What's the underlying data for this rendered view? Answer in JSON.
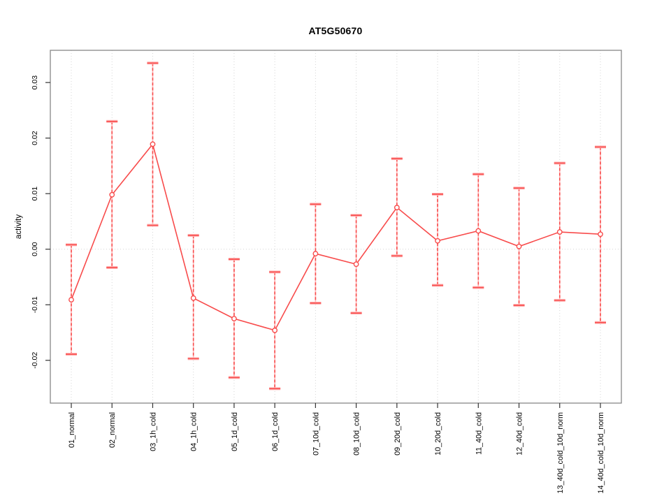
{
  "window": {
    "background": "#ffffff"
  },
  "chart_data": {
    "type": "line",
    "title": "AT5G50670",
    "xlabel": "",
    "ylabel": "activity",
    "categories": [
      "01_normal",
      "02_normal",
      "03_1h_cold",
      "04_1h_cold",
      "05_1d_cold",
      "06_1d_cold",
      "07_10d_cold",
      "08_10d_cold",
      "09_20d_cold",
      "10_20d_cold",
      "11_40d_cold",
      "12_40d_cold",
      "13_40d_cold_10d_norm",
      "14_40d_cold_10d_norm"
    ],
    "series": [
      {
        "name": "activity",
        "means": [
          -0.0091,
          0.0098,
          0.0189,
          -0.0088,
          -0.0125,
          -0.0146,
          -0.0008,
          -0.0027,
          0.0075,
          0.0015,
          0.0033,
          0.0005,
          0.0031,
          0.0027
        ],
        "upper": [
          0.0008,
          0.023,
          0.0335,
          0.0025,
          -0.0018,
          -0.0041,
          0.0081,
          0.0061,
          0.0163,
          0.0099,
          0.0135,
          0.011,
          0.0155,
          0.0184
        ],
        "lower": [
          -0.0189,
          -0.0033,
          0.0043,
          -0.0197,
          -0.0231,
          -0.0251,
          -0.0097,
          -0.0115,
          -0.0012,
          -0.0065,
          -0.0069,
          -0.0101,
          -0.0092,
          -0.0132
        ]
      }
    ],
    "ylim": [
      -0.0277,
      0.0358
    ],
    "yticks": [
      -0.02,
      -0.01,
      0,
      0.01,
      0.02,
      0.03
    ],
    "ytick_labels": [
      "-0.02",
      "-0.01",
      "0.00",
      "0.01",
      "0.02",
      "0.03"
    ],
    "grid": {
      "vertical_per_category": true,
      "horizontal_at_zero": true,
      "style": "dotted"
    },
    "legend": null,
    "point_style": "open-circle",
    "error_bar_style": "dashed-with-caps",
    "colors": {
      "series": "#f84b4b",
      "cap_halo": "#ffb3b3",
      "grid": "#d4d4d4",
      "frame": "#878787",
      "tick": "#333333",
      "text": "#000000"
    }
  }
}
